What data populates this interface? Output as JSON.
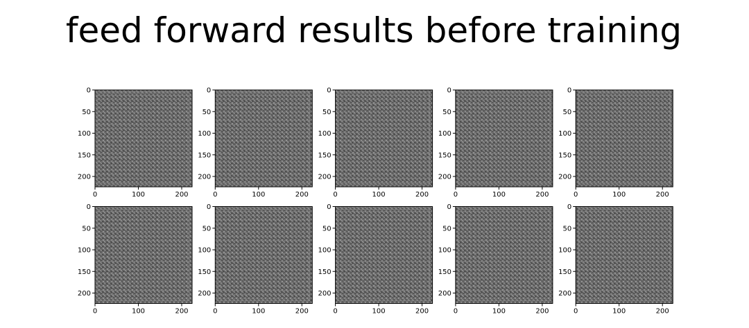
{
  "chart_data": {
    "type": "image_grid",
    "title": "feed forward results before training",
    "rows": 2,
    "cols": 5,
    "image_size": [
      224,
      224
    ],
    "colormap": "gray",
    "content": "noise",
    "xlim": [
      0,
      224
    ],
    "ylim": [
      224,
      0
    ],
    "xticks": [
      0,
      100,
      200
    ],
    "yticks": [
      0,
      50,
      100,
      150,
      200
    ],
    "panels": [
      {
        "row": 0,
        "col": 0
      },
      {
        "row": 0,
        "col": 1
      },
      {
        "row": 0,
        "col": 2
      },
      {
        "row": 0,
        "col": 3
      },
      {
        "row": 0,
        "col": 4
      },
      {
        "row": 1,
        "col": 0
      },
      {
        "row": 1,
        "col": 1
      },
      {
        "row": 1,
        "col": 2
      },
      {
        "row": 1,
        "col": 3
      },
      {
        "row": 1,
        "col": 4
      }
    ]
  }
}
